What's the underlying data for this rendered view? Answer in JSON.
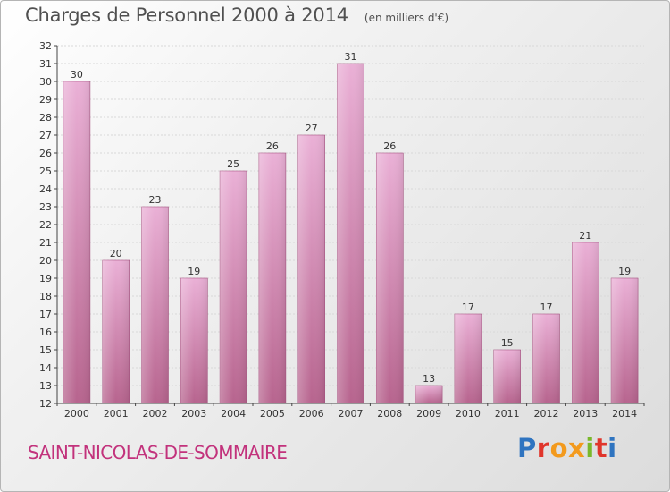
{
  "header": {
    "title": "Charges de Personnel 2000 à 2014",
    "subtitle": "(en milliers d'€)"
  },
  "footer": {
    "place": "SAINT-NICOLAS-DE-SOMMAIRE",
    "brand": "Proxiti"
  },
  "colors": {
    "bar_light": "#eab0d6",
    "bar_dark": "#b7648e",
    "place_text": "#c2327c"
  },
  "chart_data": {
    "type": "bar",
    "categories": [
      "2000",
      "2001",
      "2002",
      "2003",
      "2004",
      "2005",
      "2006",
      "2007",
      "2008",
      "2009",
      "2010",
      "2011",
      "2012",
      "2013",
      "2014"
    ],
    "values": [
      30,
      20,
      23,
      19,
      25,
      26,
      27,
      31,
      26,
      13,
      17,
      15,
      17,
      21,
      19
    ],
    "title": "Charges de Personnel 2000 à 2014",
    "subtitle": "(en milliers d'€)",
    "xlabel": "",
    "ylabel": "",
    "ylim": [
      12,
      32
    ],
    "yticks": [
      12,
      13,
      14,
      15,
      16,
      17,
      18,
      19,
      20,
      21,
      22,
      23,
      24,
      25,
      26,
      27,
      28,
      29,
      30,
      31,
      32
    ],
    "grid": true,
    "legend": "none"
  }
}
